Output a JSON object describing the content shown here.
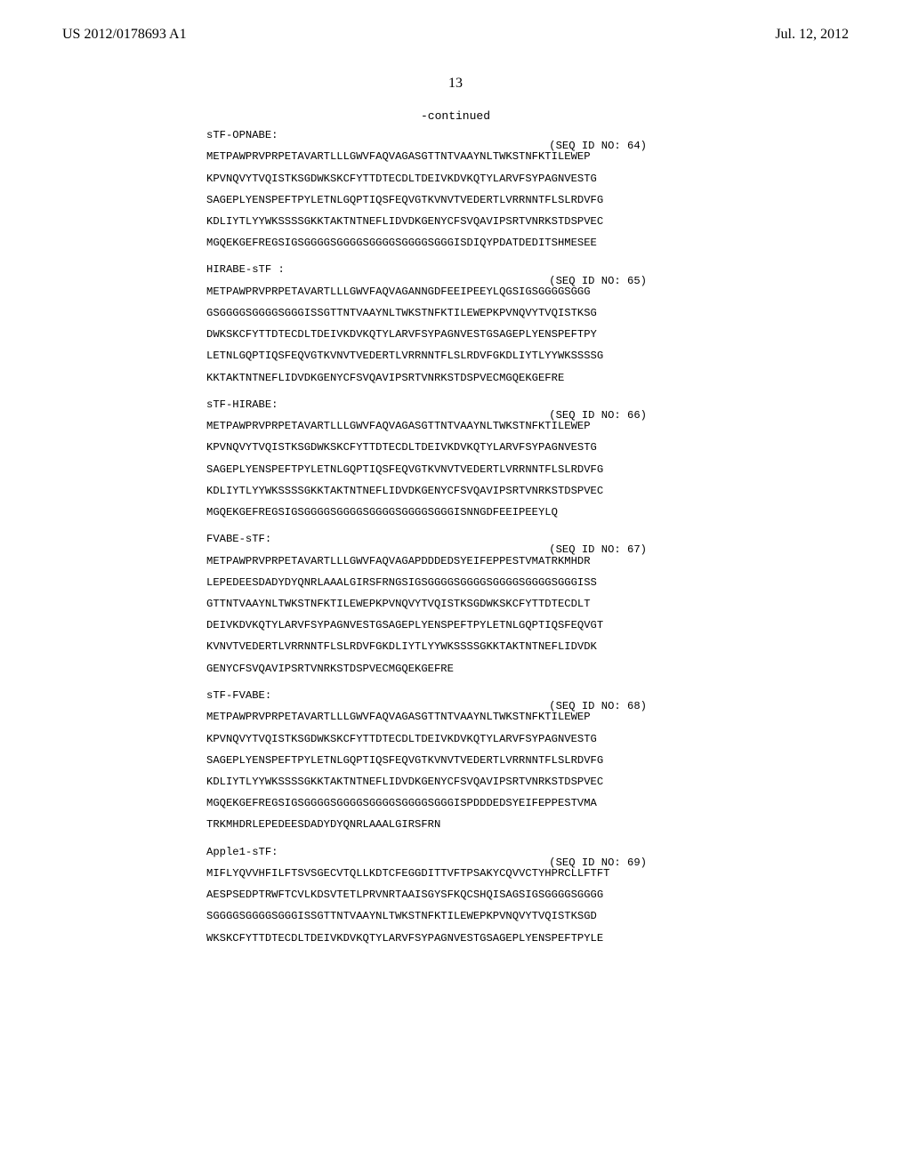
{
  "header": {
    "left": "US 2012/0178693 A1",
    "right": "Jul. 12, 2012"
  },
  "page_number": "13",
  "continued": "-continued",
  "blocks": [
    {
      "label": "sTF-OPNABE:",
      "seq_id": "(SEQ ID NO: 64)",
      "lines": [
        "METPAWPRVPRPETAVARTLLLGWVFAQVAGASGTTNTVAAYNLTWKSTNFKTILEWEP",
        "KPVNQVYTVQISTKSGDWKSKCFYTTDTECDLTDEIVKDVKQTYLARVFSYPAGNVESTG",
        "SAGEPLYENSPEFTPYLETNLGQPTIQSFEQVGTKVNVTVEDERTLVRRNNTFLSLRDVFG",
        "KDLIYTLYYWKSSSSGKKTAKTNTNEFLIDVDKGENYCFSVQAVIPSRTVNRKSTDSPVEC",
        "MGQEKGEFREGSIGSGGGGSGGGGSGGGGSGGGGSGGGISDIQYPDATDEDITSHMESEE"
      ]
    },
    {
      "label": "HIRABE-sTF :",
      "seq_id": "(SEQ ID NO: 65)",
      "lines": [
        "METPAWPRVPRPETAVARTLLLGWVFAQVAGANNGDFEEIPEEYLQGSIGSGGGGSGGG",
        "GSGGGGSGGGGSGGGISSGTTNTVAAYNLTWKSTNFKTILEWEPKPVNQVYTVQISTKSG",
        "DWKSKCFYTTDTECDLTDEIVKDVKQTYLARVFSYPAGNVESTGSAGEPLYENSPEFTPY",
        "LETNLGQPTIQSFEQVGTKVNVTVEDERTLVRRNNTFLSLRDVFGKDLIYTLYYWKSSSSG",
        "KKTAKTNTNEFLIDVDKGENYCFSVQAVIPSRTVNRKSTDSPVECMGQEKGEFRE"
      ]
    },
    {
      "label": "sTF-HIRABE:",
      "seq_id": "(SEQ ID NO: 66)",
      "lines": [
        "METPAWPRVPRPETAVARTLLLGWVFAQVAGASGTTNTVAAYNLTWKSTNFKTILEWEP",
        "KPVNQVYTVQISTKSGDWKSKCFYTTDTECDLTDEIVKDVKQTYLARVFSYPAGNVESTG",
        "SAGEPLYENSPEFTPYLETNLGQPTIQSFEQVGTKVNVTVEDERTLVRRNNTFLSLRDVFG",
        "KDLIYTLYYWKSSSSGKKTAKTNTNEFLIDVDKGENYCFSVQAVIPSRTVNRKSTDSPVEC",
        "MGQEKGEFREGSIGSGGGGSGGGGSGGGGSGGGGSGGGISNNGDFEEIPEEYLQ"
      ]
    },
    {
      "label": "FVABE-sTF:",
      "seq_id": "(SEQ ID NO: 67)",
      "lines": [
        "METPAWPRVPRPETAVARTLLLGWVFAQVAGAPDDDEDSYEIFEPPESTVMATRKMHDR",
        "LEPEDEESDADYDYQNRLAAALGIRSFRNGSIGSGGGGSGGGGSGGGGSGGGGSGGGISS",
        "GTTNTVAAYNLTWKSTNFKTILEWEPKPVNQVYTVQISTKSGDWKSKCFYTTDTECDLT",
        "DEIVKDVKQTYLARVFSYPAGNVESTGSAGEPLYENSPEFTPYLETNLGQPTIQSFEQVGT",
        "KVNVTVEDERTLVRRNNTFLSLRDVFGKDLIYTLYYWKSSSSGKKTAKTNTNEFLIDVDK",
        "GENYCFSVQAVIPSRTVNRKSTDSPVECMGQEKGEFRE"
      ]
    },
    {
      "label": "sTF-FVABE:",
      "seq_id": "(SEQ ID NO: 68)",
      "lines": [
        "METPAWPRVPRPETAVARTLLLGWVFAQVAGASGTTNTVAAYNLTWKSTNFKTILEWEP",
        "KPVNQVYTVQISTKSGDWKSKCFYTTDTECDLTDEIVKDVKQTYLARVFSYPAGNVESTG",
        "SAGEPLYENSPEFTPYLETNLGQPTIQSFEQVGTKVNVTVEDERTLVRRNNTFLSLRDVFG",
        "KDLIYTLYYWKSSSSGKKTAKTNTNEFLIDVDKGENYCFSVQAVIPSRTVNRKSTDSPVEC",
        "MGQEKGEFREGSIGSGGGGSGGGGSGGGGSGGGGSGGGISPDDDEDSYEIFEPPESTVMA",
        "TRKMHDRLEPEDEESDADYDYQNRLAAALGIRSFRN"
      ]
    },
    {
      "label": "Apple1-sTF:",
      "seq_id": "(SEQ ID NO: 69)",
      "lines": [
        "MIFLYQVVHFILFTSVSGECVTQLLKDTCFEGGDITTVFTPSAKYCQVVCTYHPRCLLFTFT",
        "AESPSEDPTRWFTCVLKDSVTETLPRVNRTAAISGYSFKQCSHQISAGSIGSGGGGSGGGG",
        "SGGGGSGGGGSGGGISSGTTNTVAAYNLTWKSTNFKTILEWEPKPVNQVYTVQISTKSGD",
        "WKSKCFYTTDTECDLTDEIVKDVKQTYLARVFSYPAGNVESTGSAGEPLYENSPEFTPYLE"
      ]
    }
  ]
}
